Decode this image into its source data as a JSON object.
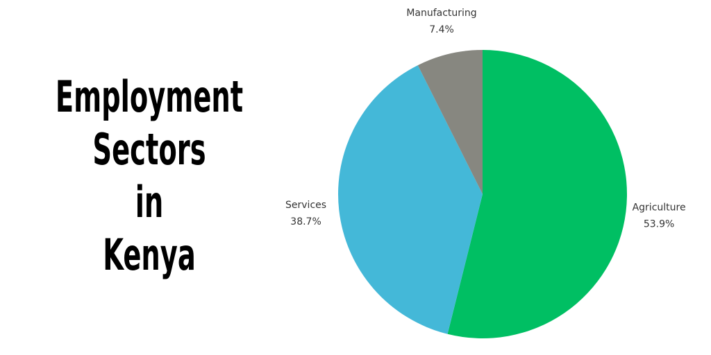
{
  "chart_data": {
    "type": "pie",
    "title": "Employment Sectors in Kenya",
    "categories": [
      "Agriculture",
      "Services",
      "Manufacturing"
    ],
    "values": [
      53.9,
      38.7,
      7.4
    ],
    "value_labels": [
      "53.9%",
      "38.7%",
      "7.4%"
    ],
    "colors": [
      "#00bf63",
      "#44b8d8",
      "#878780"
    ]
  }
}
